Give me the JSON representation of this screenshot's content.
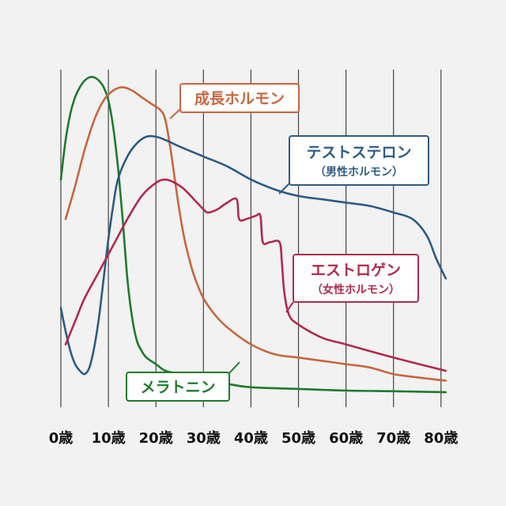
{
  "chart_data": {
    "type": "line",
    "xlim": [
      0,
      80
    ],
    "x_ticks": [
      0,
      10,
      20,
      30,
      40,
      50,
      60,
      70,
      80
    ],
    "x_tick_labels": [
      "0歳",
      "10歳",
      "20歳",
      "30歳",
      "40歳",
      "50歳",
      "60歳",
      "70歳",
      "80歳"
    ],
    "grid": "vertical",
    "series": [
      {
        "key": "melatonin",
        "name": "メラトニン",
        "color": "#1f7a2e",
        "points": [
          [
            0,
            70
          ],
          [
            1,
            82
          ],
          [
            2,
            90
          ],
          [
            3,
            95
          ],
          [
            4,
            98
          ],
          [
            5,
            100
          ],
          [
            6,
            101
          ],
          [
            7,
            101
          ],
          [
            8,
            100
          ],
          [
            9,
            98
          ],
          [
            10,
            94
          ],
          [
            11,
            86
          ],
          [
            12,
            74
          ],
          [
            13,
            58
          ],
          [
            14,
            40
          ],
          [
            15,
            28
          ],
          [
            16,
            21
          ],
          [
            17,
            18
          ],
          [
            18,
            16
          ],
          [
            20,
            14
          ],
          [
            22,
            12
          ],
          [
            25,
            11
          ],
          [
            30,
            9
          ],
          [
            35,
            8
          ],
          [
            40,
            7
          ],
          [
            50,
            6.5
          ],
          [
            60,
            6
          ],
          [
            70,
            5.8
          ],
          [
            81,
            5.5
          ]
        ]
      },
      {
        "key": "growth_hormone",
        "name": "成長ホルモン",
        "color": "#c8663e",
        "points": [
          [
            1,
            58
          ],
          [
            3,
            68
          ],
          [
            5,
            79
          ],
          [
            7,
            88
          ],
          [
            9,
            94
          ],
          [
            11,
            97
          ],
          [
            13,
            98
          ],
          [
            15,
            97
          ],
          [
            17,
            95
          ],
          [
            19,
            93
          ],
          [
            21,
            91
          ],
          [
            22,
            88
          ],
          [
            23,
            80
          ],
          [
            24,
            70
          ],
          [
            25,
            60
          ],
          [
            26,
            52
          ],
          [
            27,
            46
          ],
          [
            28,
            41
          ],
          [
            30,
            34
          ],
          [
            33,
            28
          ],
          [
            36,
            24
          ],
          [
            40,
            20
          ],
          [
            45,
            17
          ],
          [
            50,
            16
          ],
          [
            55,
            15
          ],
          [
            60,
            14
          ],
          [
            65,
            13
          ],
          [
            70,
            11
          ],
          [
            75,
            10
          ],
          [
            81,
            9
          ]
        ]
      },
      {
        "key": "testosterone",
        "name": "テストステロン",
        "name2": "（男性ホルモン）",
        "color": "#2e5b85",
        "points": [
          [
            0,
            31
          ],
          [
            1,
            24
          ],
          [
            2,
            18
          ],
          [
            3,
            14
          ],
          [
            4,
            12
          ],
          [
            5,
            11
          ],
          [
            6,
            13
          ],
          [
            7,
            19
          ],
          [
            8,
            28
          ],
          [
            9,
            40
          ],
          [
            10,
            52
          ],
          [
            11,
            62
          ],
          [
            12,
            70
          ],
          [
            14,
            77
          ],
          [
            16,
            81
          ],
          [
            18,
            83
          ],
          [
            20,
            83
          ],
          [
            22,
            82
          ],
          [
            25,
            80
          ],
          [
            30,
            77
          ],
          [
            35,
            74
          ],
          [
            40,
            70
          ],
          [
            45,
            67
          ],
          [
            50,
            65
          ],
          [
            55,
            64
          ],
          [
            60,
            63
          ],
          [
            65,
            62
          ],
          [
            70,
            60
          ],
          [
            74,
            58
          ],
          [
            77,
            53
          ],
          [
            79,
            46
          ],
          [
            81,
            40
          ]
        ]
      },
      {
        "key": "estrogen",
        "name": "エストロゲン",
        "name2": "（女性ホルモン）",
        "color": "#b02a4d",
        "points": [
          [
            1,
            20
          ],
          [
            3,
            27
          ],
          [
            5,
            34
          ],
          [
            8,
            42
          ],
          [
            11,
            50
          ],
          [
            14,
            58
          ],
          [
            17,
            65
          ],
          [
            20,
            69
          ],
          [
            22,
            70
          ],
          [
            24,
            69
          ],
          [
            26,
            67
          ],
          [
            28,
            64
          ],
          [
            30,
            61
          ],
          [
            31,
            60
          ],
          [
            33,
            61
          ],
          [
            35,
            63
          ],
          [
            37,
            64
          ],
          [
            37.5,
            58
          ],
          [
            39,
            58
          ],
          [
            41,
            59
          ],
          [
            42,
            59
          ],
          [
            42.5,
            51
          ],
          [
            44,
            51
          ],
          [
            46,
            51
          ],
          [
            46.5,
            45
          ],
          [
            47,
            36
          ],
          [
            48,
            29
          ],
          [
            50,
            26
          ],
          [
            55,
            22
          ],
          [
            60,
            20
          ],
          [
            70,
            16
          ],
          [
            81,
            12
          ]
        ]
      }
    ],
    "annotations": [
      {
        "series": "growth_hormone",
        "text": "成長ホルモン"
      },
      {
        "series": "testosterone",
        "lines": [
          "テストステロン",
          "（男性ホルモン）"
        ]
      },
      {
        "series": "estrogen",
        "lines": [
          "エストロゲン",
          "（女性ホルモン）"
        ]
      },
      {
        "series": "melatonin",
        "text": "メラトニン"
      }
    ]
  }
}
